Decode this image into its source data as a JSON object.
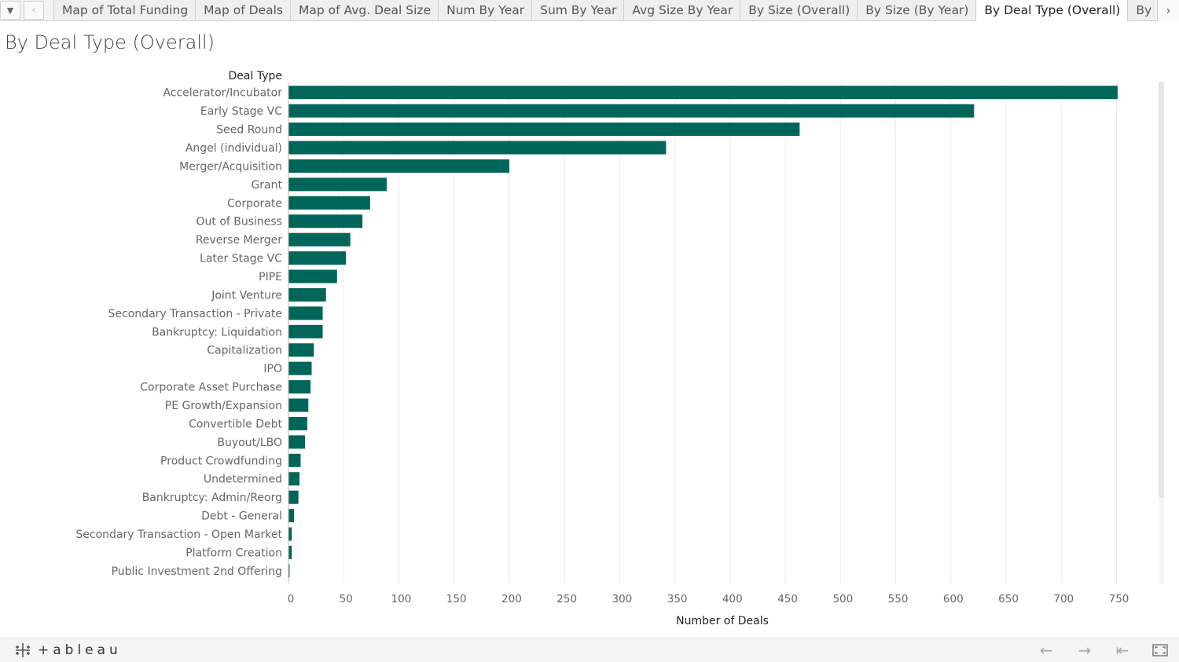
{
  "tabbar": {
    "tabs": [
      {
        "label": "Map of Total Funding"
      },
      {
        "label": "Map of Deals"
      },
      {
        "label": "Map of Avg. Deal Size"
      },
      {
        "label": "Num By Year"
      },
      {
        "label": "Sum By Year"
      },
      {
        "label": "Avg Size By Year"
      },
      {
        "label": "By Size (Overall)"
      },
      {
        "label": "By Size (By Year)"
      },
      {
        "label": "By Deal Type (Overall)",
        "active": true
      },
      {
        "label": "By Deal Type (By Year)"
      }
    ]
  },
  "sheet": {
    "title": "By Deal Type (Overall)"
  },
  "brand": {
    "name": "+ableau"
  },
  "colors": {
    "bar": "#00665a",
    "grid": "#ececec",
    "axis_text": "#666666",
    "label_text": "#666666"
  },
  "chart_data": {
    "type": "bar",
    "orientation": "horizontal",
    "row_header": "Deal Type",
    "xlabel": "Number of Deals",
    "xlim": [
      0,
      790
    ],
    "xticks": [
      0,
      50,
      100,
      150,
      200,
      250,
      300,
      350,
      400,
      450,
      500,
      550,
      600,
      650,
      700,
      750
    ],
    "grid": true,
    "categories": [
      "Accelerator/Incubator",
      "Early Stage VC",
      "Seed Round",
      "Angel (individual)",
      "Merger/Acquisition",
      "Grant",
      "Corporate",
      "Out of Business",
      "Reverse Merger",
      "Later Stage VC",
      "PIPE",
      "Joint Venture",
      "Secondary Transaction - Private",
      "Bankruptcy: Liquidation",
      "Capitalization",
      "IPO",
      "Corporate Asset Purchase",
      "PE Growth/Expansion",
      "Convertible Debt",
      "Buyout/LBO",
      "Product Crowdfunding",
      "Undetermined",
      "Bankruptcy: Admin/Reorg",
      "Debt - General",
      "Secondary Transaction - Open Market",
      "Platform Creation",
      "Public Investment 2nd Offering"
    ],
    "values": [
      751,
      621,
      463,
      342,
      200,
      89,
      74,
      67,
      56,
      52,
      44,
      34,
      31,
      31,
      23,
      21,
      20,
      18,
      17,
      15,
      11,
      10,
      9,
      5,
      3,
      3,
      1
    ]
  }
}
